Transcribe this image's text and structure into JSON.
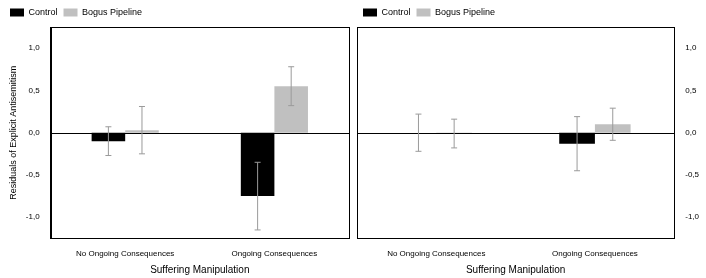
{
  "chart_data": [
    {
      "type": "bar",
      "categories": [
        "No Ongoing Consequences",
        "Ongoing Consequences"
      ],
      "series": [
        {
          "name": "Control",
          "color": "#000000",
          "values": [
            -0.1,
            -0.75
          ],
          "errors": [
            0.17,
            0.4
          ]
        },
        {
          "name": "Bogus Pipeline",
          "color": "#c0c0c0",
          "values": [
            0.03,
            0.55
          ],
          "errors": [
            0.28,
            0.23
          ]
        }
      ],
      "x_label": "Suffering Manipulation",
      "y_label": "Residuals of Explicit Antisemitism",
      "ylim": [
        -1.25,
        1.25
      ],
      "yticks": [
        {
          "value": -1.0,
          "label": "-1,0"
        },
        {
          "value": -0.5,
          "label": "-0,5"
        },
        {
          "value": 0,
          "label": "0,0"
        },
        {
          "value": 0.5,
          "label": "0,5"
        },
        {
          "value": 1.0,
          "label": "1,0"
        }
      ],
      "grid": false,
      "legend": "top"
    },
    {
      "type": "bar",
      "categories": [
        "No Ongoing Consequences",
        "Ongoing Consequences"
      ],
      "series": [
        {
          "name": "Control",
          "color": "#000000",
          "values": [
            0.0,
            -0.13
          ],
          "errors": [
            0.22,
            0.32
          ]
        },
        {
          "name": "Bogus Pipeline",
          "color": "#c0c0c0",
          "values": [
            -0.01,
            0.1
          ],
          "errors": [
            0.17,
            0.19
          ]
        }
      ],
      "x_label": "Suffering Manipulation",
      "ylim": [
        -1.25,
        1.25
      ],
      "yticks": [
        {
          "value": -1.0,
          "label": "-1,0"
        },
        {
          "value": -0.5,
          "label": "-0,5"
        },
        {
          "value": 0,
          "label": "0,0"
        },
        {
          "value": 0.5,
          "label": "0,5"
        },
        {
          "value": 1.0,
          "label": "1,0"
        }
      ],
      "grid": false,
      "legend": "top"
    }
  ]
}
